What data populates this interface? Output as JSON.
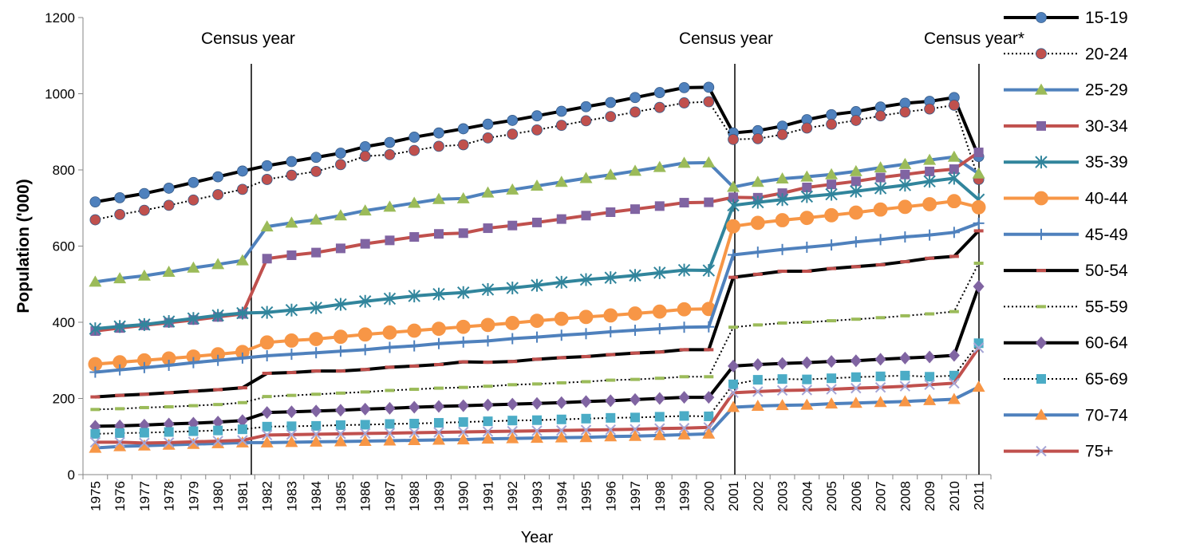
{
  "chart_data": {
    "type": "line",
    "title": "",
    "xlabel": "Year",
    "ylabel": "Population ('000)",
    "x": [
      "1975",
      "1976",
      "1977",
      "1978",
      "1979",
      "1980",
      "1981",
      "1982",
      "1983",
      "1984",
      "1985",
      "1986",
      "1987",
      "1988",
      "1989",
      "1990",
      "1991",
      "1992",
      "1993",
      "1994",
      "1995",
      "1996",
      "1997",
      "1998",
      "1999",
      "2000",
      "2001",
      "2002",
      "2003",
      "2004",
      "2005",
      "2006",
      "2007",
      "2008",
      "2009",
      "2010",
      "2011"
    ],
    "ylim": [
      0,
      1200
    ],
    "yticks": [
      0,
      200,
      400,
      600,
      800,
      1000,
      1200
    ],
    "grid": false,
    "legend_position": "right",
    "annotations": [
      {
        "text": "Census year",
        "x": "1981"
      },
      {
        "text": "Census year",
        "x": "2001"
      },
      {
        "text": "Census year*",
        "x": "2011"
      }
    ],
    "series": [
      {
        "name": "15-19",
        "color": "#000000",
        "marker_color": "#4F81BD",
        "marker": "circle",
        "dash": "solid",
        "values": [
          716,
          727,
          738,
          752,
          767,
          782,
          797,
          811,
          822,
          833,
          844,
          861,
          872,
          886,
          897,
          908,
          920,
          930,
          942,
          954,
          966,
          977,
          990,
          1003,
          1016,
          1017,
          897,
          903,
          915,
          932,
          945,
          953,
          965,
          975,
          980,
          990,
          835
        ]
      },
      {
        "name": "20-24",
        "color": "#000000",
        "marker_color": "#C0504D",
        "marker": "circle",
        "dash": "dotted",
        "values": [
          669,
          683,
          694,
          707,
          721,
          735,
          749,
          775,
          786,
          796,
          814,
          836,
          840,
          851,
          862,
          866,
          884,
          894,
          905,
          917,
          929,
          940,
          952,
          964,
          976,
          979,
          880,
          882,
          893,
          910,
          920,
          930,
          942,
          952,
          960,
          970,
          775
        ]
      },
      {
        "name": "25-29",
        "color": "#4F81BD",
        "marker_color": "#9BBB59",
        "marker": "triangle",
        "dash": "solid",
        "values": [
          506,
          515,
          522,
          532,
          543,
          552,
          562,
          651,
          661,
          669,
          680,
          693,
          703,
          713,
          723,
          725,
          740,
          748,
          758,
          768,
          778,
          787,
          797,
          807,
          818,
          819,
          755,
          768,
          777,
          782,
          788,
          796,
          806,
          815,
          826,
          834,
          790
        ]
      },
      {
        "name": "30-34",
        "color": "#C0504D",
        "marker_color": "#8064A2",
        "marker": "square",
        "dash": "solid",
        "values": [
          377,
          385,
          392,
          399,
          406,
          414,
          422,
          567,
          576,
          583,
          594,
          606,
          615,
          624,
          632,
          634,
          647,
          654,
          662,
          671,
          680,
          689,
          697,
          705,
          714,
          715,
          728,
          727,
          739,
          754,
          762,
          770,
          780,
          788,
          796,
          802,
          846
        ]
      },
      {
        "name": "35-39",
        "color": "#31859C",
        "marker_color": "#31859C",
        "marker": "x-star",
        "dash": "solid",
        "values": [
          383,
          389,
          394,
          402,
          410,
          418,
          424,
          426,
          432,
          438,
          447,
          455,
          462,
          469,
          474,
          478,
          486,
          490,
          497,
          505,
          512,
          517,
          523,
          530,
          537,
          536,
          707,
          715,
          722,
          730,
          736,
          744,
          752,
          760,
          770,
          778,
          722
        ]
      },
      {
        "name": "40-44",
        "color": "#F79646",
        "marker_color": "#F79646",
        "marker": "big-circle",
        "dash": "solid",
        "values": [
          290,
          295,
          300,
          305,
          310,
          316,
          322,
          347,
          352,
          356,
          362,
          368,
          373,
          378,
          383,
          388,
          393,
          398,
          404,
          409,
          414,
          418,
          423,
          428,
          434,
          435,
          652,
          661,
          668,
          674,
          681,
          688,
          696,
          703,
          710,
          718,
          702
        ]
      },
      {
        "name": "45-49",
        "color": "#4F81BD",
        "marker_color": "#4F81BD",
        "marker": "plus",
        "dash": "solid",
        "values": [
          269,
          275,
          281,
          287,
          294,
          300,
          306,
          312,
          316,
          320,
          324,
          328,
          334,
          338,
          344,
          348,
          351,
          357,
          361,
          366,
          370,
          375,
          379,
          383,
          387,
          388,
          577,
          584,
          591,
          597,
          603,
          611,
          617,
          624,
          629,
          636,
          660
        ]
      },
      {
        "name": "50-54",
        "color": "#000000",
        "marker_color": "#C0504D",
        "marker": "dash",
        "dash": "solid",
        "values": [
          204,
          208,
          211,
          215,
          219,
          223,
          228,
          266,
          268,
          272,
          272,
          276,
          282,
          285,
          289,
          296,
          295,
          297,
          303,
          307,
          310,
          315,
          319,
          322,
          328,
          328,
          518,
          526,
          534,
          534,
          541,
          546,
          551,
          559,
          568,
          573,
          640
        ]
      },
      {
        "name": "55-59",
        "color": "#000000",
        "marker_color": "#9BBB59",
        "marker": "dash",
        "dash": "dotted",
        "values": [
          171,
          173,
          176,
          178,
          181,
          184,
          189,
          205,
          208,
          211,
          214,
          217,
          221,
          224,
          227,
          229,
          232,
          236,
          238,
          241,
          244,
          248,
          250,
          253,
          257,
          257,
          387,
          393,
          398,
          400,
          404,
          408,
          412,
          417,
          422,
          428,
          555
        ]
      },
      {
        "name": "60-64",
        "color": "#000000",
        "marker_color": "#8064A2",
        "marker": "diamond",
        "dash": "solid",
        "values": [
          127,
          128,
          130,
          133,
          135,
          138,
          142,
          163,
          165,
          167,
          169,
          172,
          174,
          177,
          179,
          181,
          183,
          185,
          187,
          189,
          192,
          194,
          197,
          200,
          203,
          203,
          285,
          289,
          292,
          294,
          297,
          299,
          303,
          306,
          309,
          313,
          494
        ]
      },
      {
        "name": "65-69",
        "color": "#000000",
        "marker_color": "#4BACC6",
        "marker": "square",
        "dash": "dotted",
        "values": [
          107,
          109,
          110,
          112,
          114,
          116,
          119,
          126,
          127,
          128,
          130,
          131,
          133,
          134,
          136,
          138,
          140,
          142,
          143,
          145,
          147,
          149,
          150,
          152,
          154,
          153,
          237,
          249,
          251,
          250,
          253,
          256,
          258,
          260,
          257,
          260,
          345
        ]
      },
      {
        "name": "70-74",
        "color": "#4F81BD",
        "marker_color": "#F79646",
        "marker": "triangle",
        "dash": "solid",
        "values": [
          70,
          74,
          76,
          78,
          80,
          82,
          84,
          84,
          85,
          86,
          87,
          88,
          89,
          90,
          91,
          92,
          94,
          95,
          96,
          97,
          98,
          100,
          101,
          103,
          105,
          107,
          177,
          180,
          182,
          183,
          186,
          188,
          190,
          192,
          195,
          198,
          230
        ]
      },
      {
        "name": "75+",
        "color": "#C0504D",
        "marker_color": "#A5A5D5",
        "marker": "x",
        "dash": "solid",
        "values": [
          85,
          85,
          83,
          84,
          86,
          88,
          90,
          104,
          105,
          106,
          107,
          108,
          109,
          110,
          111,
          112,
          113,
          114,
          115,
          116,
          117,
          118,
          119,
          121,
          122,
          124,
          215,
          218,
          221,
          222,
          224,
          227,
          229,
          232,
          236,
          240,
          333
        ]
      }
    ]
  }
}
